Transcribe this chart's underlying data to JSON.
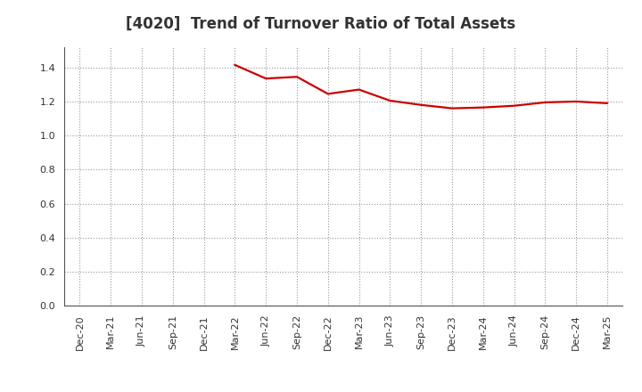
{
  "title": "[4020]  Trend of Turnover Ratio of Total Assets",
  "x_labels": [
    "Dec-20",
    "Mar-21",
    "Jun-21",
    "Sep-21",
    "Dec-21",
    "Mar-22",
    "Jun-22",
    "Sep-22",
    "Dec-22",
    "Mar-23",
    "Jun-23",
    "Sep-23",
    "Dec-23",
    "Mar-24",
    "Jun-24",
    "Sep-24",
    "Dec-24",
    "Mar-25"
  ],
  "y_values": [
    null,
    null,
    null,
    null,
    null,
    1.415,
    1.335,
    1.345,
    1.245,
    1.27,
    1.205,
    1.18,
    1.16,
    1.165,
    1.175,
    1.195,
    1.2,
    1.19
  ],
  "ylim": [
    0.0,
    1.52
  ],
  "yticks": [
    0.0,
    0.2,
    0.4,
    0.6,
    0.8,
    1.0,
    1.2,
    1.4
  ],
  "line_color": "#cc0000",
  "line_width": 1.6,
  "background_color": "#ffffff",
  "plot_bg_color": "#ffffff",
  "grid_color": "#999999",
  "title_fontsize": 12,
  "tick_fontsize": 8,
  "title_color": "#333333"
}
